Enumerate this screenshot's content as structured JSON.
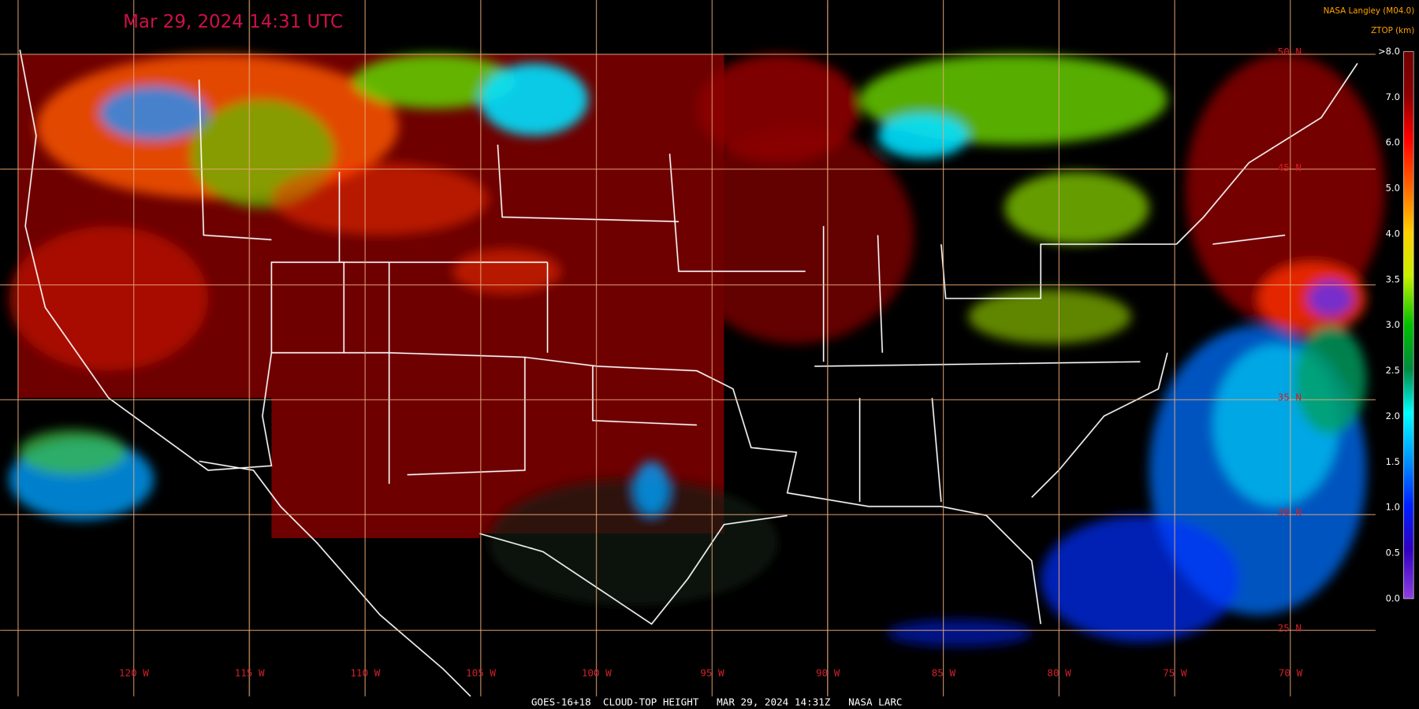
{
  "header": {
    "timestamp": "Mar 29, 2024 14:31 UTC",
    "source": "NASA Langley (M04.0)"
  },
  "legend": {
    "title": "ZTOP (km)",
    "ticks": [
      ">8.0",
      "7.0",
      "6.0",
      "5.0",
      "4.0",
      "3.5",
      "3.0",
      "2.5",
      "2.0",
      "1.5",
      "1.0",
      "0.5",
      "0.0"
    ]
  },
  "map": {
    "longitude_labels": [
      "120 W",
      "115 W",
      "110 W",
      "105 W",
      "100 W",
      "95 W",
      "90 W",
      "85 W",
      "80 W",
      "75 W",
      "70 W"
    ],
    "latitude_labels": [
      "50 N",
      "45 N",
      "35 N",
      "30 N",
      "25 N"
    ]
  },
  "footer": "GOES-16+18  CLOUD-TOP HEIGHT   MAR 29, 2024 14:31Z   NASA LARC"
}
